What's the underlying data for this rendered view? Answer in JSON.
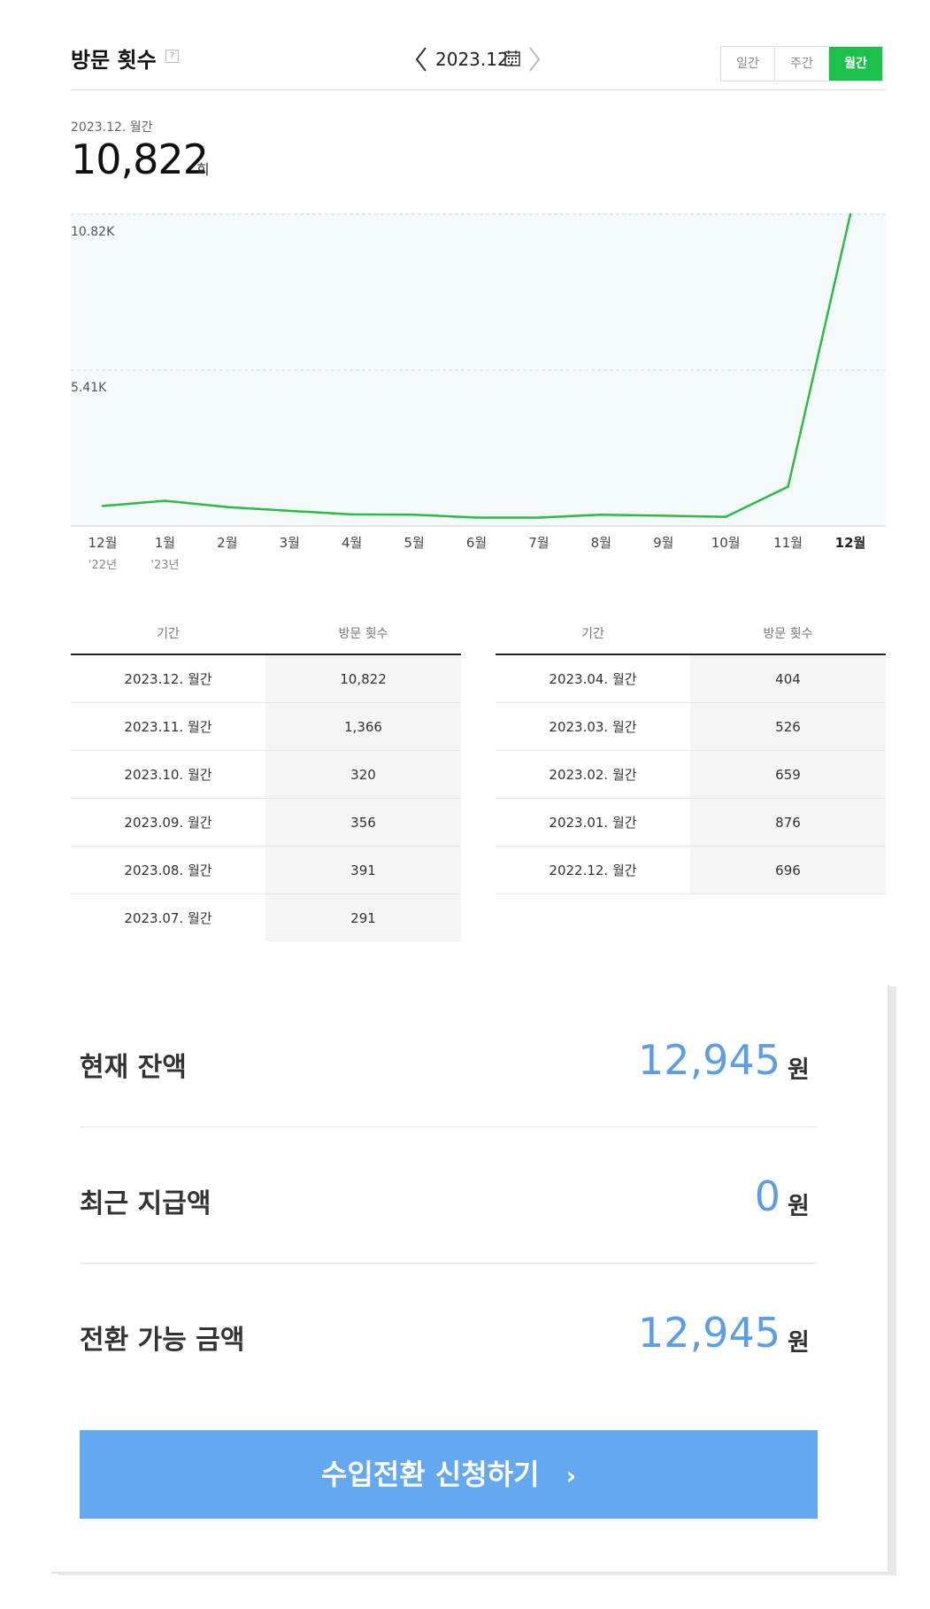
{
  "header": {
    "title": "방문 횟수",
    "help_glyph": "?",
    "date": "2023.12.",
    "segments": [
      "일간",
      "주간",
      "월간"
    ],
    "active_segment": "월간"
  },
  "summary": {
    "period_label": "2023.12. 월간",
    "total": "10,822",
    "unit": "회"
  },
  "chart_data": {
    "type": "line",
    "categories": [
      "12월",
      "1월",
      "2월",
      "3월",
      "4월",
      "5월",
      "6월",
      "7월",
      "8월",
      "9월",
      "10월",
      "11월",
      "12월"
    ],
    "year_labels": [
      "'22년",
      "'23년"
    ],
    "series": [
      {
        "values": [
          696,
          876,
          659,
          526,
          404,
          391,
          291,
          291,
          391,
          356,
          320,
          1366,
          10822
        ]
      }
    ],
    "y_ticks": [
      "10.82K",
      "5.41K"
    ],
    "ylim": [
      0,
      10822
    ],
    "line_color": "#2bbd3d",
    "area_color": "#f5fafd",
    "grid": true
  },
  "table_left": {
    "headers": [
      "기간",
      "방문 횟수"
    ],
    "rows": [
      [
        "2023.12. 월간",
        "10,822"
      ],
      [
        "2023.11. 월간",
        "1,366"
      ],
      [
        "2023.10. 월간",
        "320"
      ],
      [
        "2023.09. 월간",
        "356"
      ],
      [
        "2023.08. 월간",
        "391"
      ],
      [
        "2023.07. 월간",
        "291"
      ]
    ]
  },
  "table_right": {
    "headers": [
      "기간",
      "방문 횟수"
    ],
    "rows": [
      [
        "2023.04. 월간",
        "404"
      ],
      [
        "2023.03. 월간",
        "526"
      ],
      [
        "2023.02. 월간",
        "659"
      ],
      [
        "2023.01. 월간",
        "876"
      ],
      [
        "2022.12. 월간",
        "696"
      ]
    ]
  },
  "earnings": {
    "current_balance_label": "현재 잔액",
    "current_balance": "12,945",
    "recent_payout_label": "최근 지급액",
    "recent_payout": "0",
    "convertible_label": "전환 가능 금액",
    "convertible": "12,945",
    "currency": "원",
    "cta_label": "수입전환 신청하기",
    "cta_arrow": "›"
  },
  "colors": {
    "accent_green": "#19c24b",
    "amount_blue": "#5b9ee8",
    "cta_blue": "#63a8f1"
  }
}
